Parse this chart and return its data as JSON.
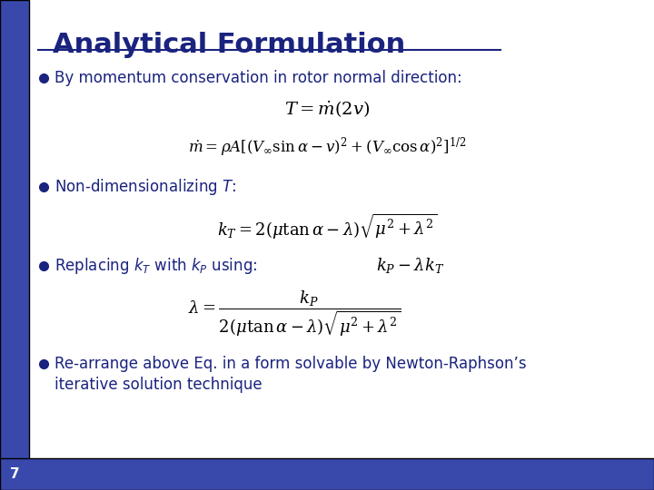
{
  "title": "Analytical Formulation",
  "title_color": "#1a237e",
  "title_fontsize": 22,
  "background_color": "#ffffff",
  "left_bar_color": "#3949ab",
  "bullet_color": "#1a237e",
  "text_color": "#1a237e",
  "slide_number": "7",
  "bullet1_text": "By momentum conservation in rotor normal direction:",
  "bullet2_text": "Non-dimensionalizing $T$:",
  "bullet3_text": "Replacing $k_T$ with $k_P$ using:",
  "bullet4_line1": "Re-arrange above Eq. in a form solvable by Newton-Raphson’s",
  "bullet4_line2": "iterative solution technique",
  "eq1": "$T = \\dot{m}(2v)$",
  "eq2": "$\\dot{m} = \\rho A[(V_\\infty \\sin\\alpha - v)^2 + (V_\\infty \\cos\\alpha)^2]^{1/2}$",
  "eq3": "$k_T = 2(\\mu\\tan\\alpha - \\lambda)\\sqrt{\\mu^2 + \\lambda^2}$",
  "eq3b": "$k_P - \\lambda k_T$",
  "eq4": "$\\lambda = \\dfrac{k_P}{2(\\mu\\tan\\alpha - \\lambda)\\sqrt{\\mu^2 + \\lambda^2}}$",
  "figsize": [
    7.2,
    5.4
  ],
  "dpi": 100
}
